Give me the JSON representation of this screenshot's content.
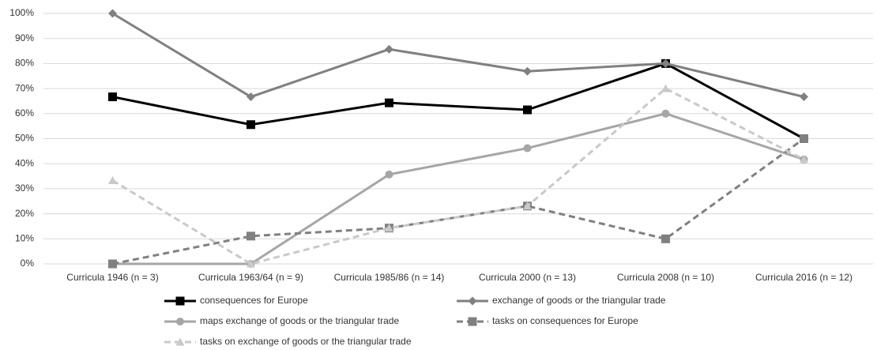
{
  "chart_data": {
    "type": "line",
    "categories": [
      "Curricula 1946 (n = 3)",
      "Curricula 1963/64 (n = 9)",
      "Curricula 1985/86 (n = 14)",
      "Curricula 2000 (n = 13)",
      "Curricula 2008 (n = 10)",
      "Curricula 2016 (n = 12)"
    ],
    "series": [
      {
        "name": "consequences for Europe",
        "color": "#000000",
        "marker": "square",
        "dashed": false,
        "values": [
          66.7,
          55.6,
          64.3,
          61.5,
          80,
          50
        ]
      },
      {
        "name": "exchange of goods or the triangular trade",
        "color": "#808080",
        "marker": "diamond",
        "dashed": false,
        "values": [
          100,
          66.7,
          85.7,
          76.9,
          80,
          66.7
        ]
      },
      {
        "name": "maps exchange of goods or the triangular trade",
        "color": "#a6a6a6",
        "marker": "circle",
        "dashed": false,
        "values": [
          0,
          0,
          35.7,
          46.2,
          60,
          41.7
        ]
      },
      {
        "name": "tasks on consequences for Europe",
        "color": "#808080",
        "marker": "square",
        "dashed": true,
        "values": [
          0,
          11.1,
          14.3,
          23.1,
          10,
          50
        ]
      },
      {
        "name": "tasks on exchange of goods or the triangular trade",
        "color": "#c9c9c9",
        "marker": "triangle",
        "dashed": true,
        "values": [
          33.3,
          0,
          14.3,
          23.1,
          70,
          41.7
        ]
      }
    ],
    "ylim": [
      0,
      100
    ],
    "yticks": [
      {
        "value": 0,
        "label": "0%"
      },
      {
        "value": 10,
        "label": "10%"
      },
      {
        "value": 20,
        "label": "20%"
      },
      {
        "value": 30,
        "label": "30%"
      },
      {
        "value": 40,
        "label": "40%"
      },
      {
        "value": 50,
        "label": "50%"
      },
      {
        "value": 60,
        "label": "60%"
      },
      {
        "value": 70,
        "label": "70%"
      },
      {
        "value": 80,
        "label": "80%"
      },
      {
        "value": 90,
        "label": "90%"
      },
      {
        "value": 100,
        "label": "100%"
      }
    ],
    "grid": true,
    "legend": "bottom"
  }
}
